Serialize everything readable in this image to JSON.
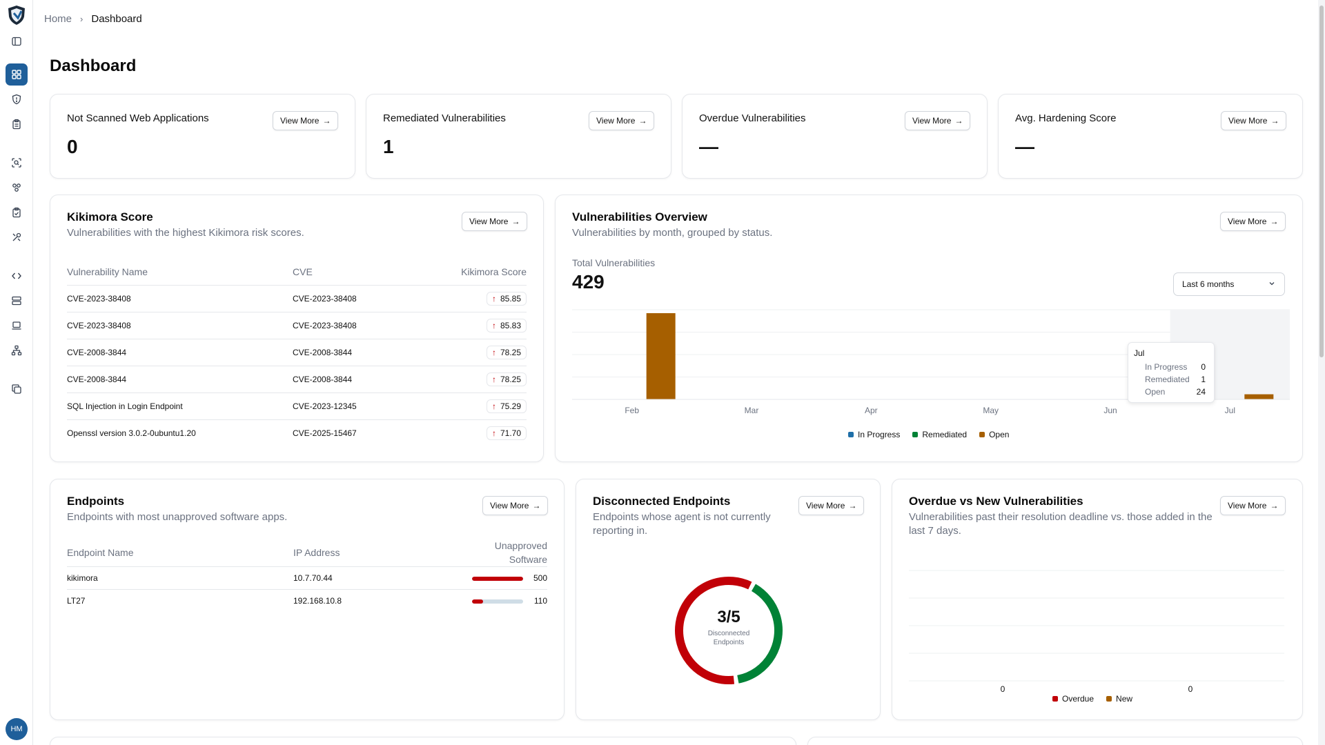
{
  "breadcrumb": {
    "home": "Home",
    "current": "Dashboard"
  },
  "page_title": "Dashboard",
  "common": {
    "view_more": "View More"
  },
  "stats": [
    {
      "label": "Not Scanned Web Applications",
      "value": "0"
    },
    {
      "label": "Remediated Vulnerabilities",
      "value": "1"
    },
    {
      "label": "Overdue Vulnerabilities",
      "value": "—"
    },
    {
      "label": "Avg. Hardening Score",
      "value": "—"
    }
  ],
  "kikimora": {
    "title": "Kikimora Score",
    "subtitle": "Vulnerabilities with the highest Kikimora risk scores.",
    "columns": [
      "Vulnerability Name",
      "CVE",
      "Kikimora Score"
    ],
    "rows": [
      {
        "name": "CVE-2023-38408",
        "cve": "CVE-2023-38408",
        "score": "85.85"
      },
      {
        "name": "CVE-2023-38408",
        "cve": "CVE-2023-38408",
        "score": "85.83"
      },
      {
        "name": "CVE-2008-3844",
        "cve": "CVE-2008-3844",
        "score": "78.25"
      },
      {
        "name": "CVE-2008-3844",
        "cve": "CVE-2008-3844",
        "score": "78.25"
      },
      {
        "name": "SQL Injection in Login Endpoint",
        "cve": "CVE-2023-12345",
        "score": "75.29"
      },
      {
        "name": "Openssl version 3.0.2-0ubuntu1.20",
        "cve": "CVE-2025-15467",
        "score": "71.70"
      }
    ]
  },
  "vuln_overview": {
    "title": "Vulnerabilities Overview",
    "subtitle": "Vulnerabilities by month, grouped by status.",
    "total_label": "Total Vulnerabilities",
    "total_value": "429",
    "range_select": "Last 6 months",
    "tooltip": {
      "month": "Jul",
      "rows": [
        {
          "label": "In Progress",
          "value": "0"
        },
        {
          "label": "Remediated",
          "value": "1"
        },
        {
          "label": "Open",
          "value": "24"
        }
      ]
    }
  },
  "endpoints": {
    "title": "Endpoints",
    "subtitle": "Endpoints with most unapproved software apps.",
    "columns": [
      "Endpoint Name",
      "IP Address",
      "Unapproved Software"
    ],
    "rows": [
      {
        "name": "kikimora",
        "ip": "10.7.70.44",
        "count": "500",
        "fraction": 1.0
      },
      {
        "name": "LT27",
        "ip": "192.168.10.8",
        "count": "110",
        "fraction": 0.22
      }
    ]
  },
  "disconnected": {
    "title": "Disconnected Endpoints",
    "subtitle": "Endpoints whose agent is not currently reporting in.",
    "value": "3/5",
    "caption_line1": "Disconnected",
    "caption_line2": "Endpoints",
    "disconnected": 3,
    "total": 5,
    "colors": {
      "disconnected": "#c10007",
      "connected": "#008236"
    }
  },
  "overdue_new": {
    "title": "Overdue vs New Vulnerabilities",
    "subtitle": "Vulnerabilities past their resolution deadline vs. those added in the last 7 days."
  },
  "chart_data": [
    {
      "type": "bar",
      "categories": [
        "Feb",
        "Mar",
        "Apr",
        "May",
        "Jun",
        "Jul"
      ],
      "series": [
        {
          "name": "In Progress",
          "color": "#1f6fa8",
          "values": [
            0,
            0,
            0,
            0,
            0,
            0
          ]
        },
        {
          "name": "Remediated",
          "color": "#008236",
          "values": [
            0,
            0,
            0,
            0,
            0,
            1
          ]
        },
        {
          "name": "Open",
          "color": "#a65f00",
          "values": [
            404,
            0,
            0,
            0,
            0,
            24
          ]
        }
      ],
      "ylim": [
        0,
        420
      ],
      "grid": true,
      "legend": "bottom",
      "highlight": "Jul"
    },
    {
      "type": "bar",
      "categories": [
        "",
        ""
      ],
      "series": [
        {
          "name": "Overdue",
          "color": "#c10007",
          "values": [
            0,
            0
          ]
        },
        {
          "name": "New",
          "color": "#a65f00",
          "values": [
            0,
            0
          ]
        }
      ],
      "data_labels": [
        "0",
        "0"
      ],
      "grid": true,
      "legend": "bottom"
    }
  ],
  "user": {
    "initials": "HM"
  }
}
